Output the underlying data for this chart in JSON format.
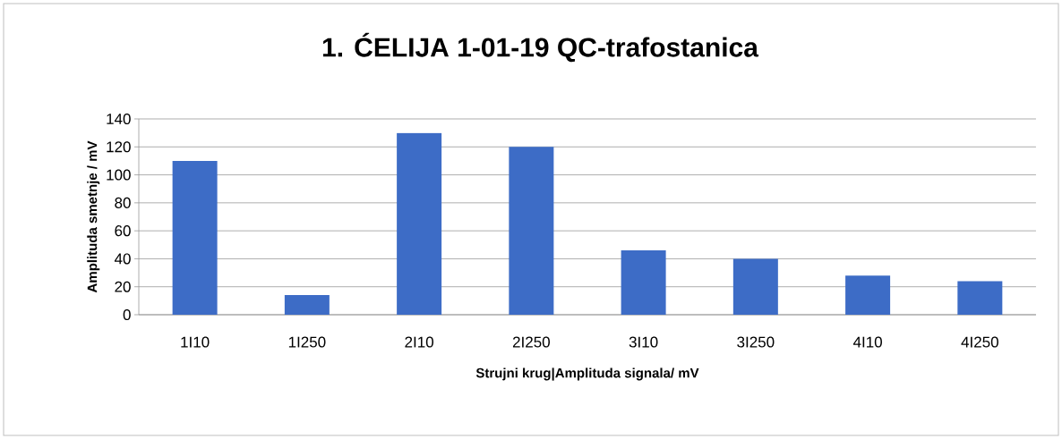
{
  "chart_data": {
    "type": "bar",
    "title": "1. ĆELIJA 1-01-19 QC-trafostanica",
    "xlabel": "Strujni krug|Amplituda signala/ mV",
    "ylabel": "Amplituda smetnje / mV",
    "categories": [
      "1I10",
      "1I250",
      "2I10",
      "2I250",
      "3I10",
      "3I250",
      "4I10",
      "4I250"
    ],
    "values": [
      110,
      14,
      130,
      120,
      46,
      40,
      28,
      24
    ],
    "color": "#3d6cc6",
    "ylim": [
      0,
      140
    ],
    "yticks": [
      0,
      20,
      40,
      60,
      80,
      100,
      120,
      140
    ],
    "grid": "y"
  }
}
